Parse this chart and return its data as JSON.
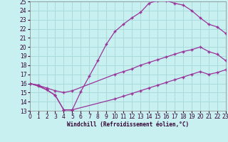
{
  "xlabel": "Windchill (Refroidissement éolien,°C)",
  "bg_color": "#c8f0f0",
  "grid_color": "#aadada",
  "line_color": "#993399",
  "xmin": 0,
  "xmax": 23,
  "ymin": 13,
  "ymax": 25,
  "line1_x": [
    0,
    1,
    2,
    3,
    4,
    5,
    6,
    7,
    8,
    9,
    10,
    11,
    12,
    13,
    14,
    15,
    16,
    17,
    18,
    19,
    20,
    21,
    22,
    23
  ],
  "line1_y": [
    16,
    15.8,
    15.3,
    14.7,
    13.1,
    13.1,
    15.1,
    16.8,
    18.5,
    20.3,
    21.7,
    22.5,
    23.2,
    23.8,
    24.8,
    25.1,
    25.1,
    24.8,
    24.6,
    24.0,
    23.2,
    22.5,
    22.2,
    21.5
  ],
  "line2_x": [
    0,
    1,
    2,
    3,
    4,
    5,
    10,
    11,
    12,
    13,
    14,
    15,
    16,
    17,
    18,
    19,
    20,
    21,
    22,
    23
  ],
  "line2_y": [
    16,
    15.8,
    15.5,
    15.2,
    15.0,
    15.2,
    17.0,
    17.3,
    17.6,
    18.0,
    18.3,
    18.6,
    18.9,
    19.2,
    19.5,
    19.7,
    20.0,
    19.5,
    19.2,
    18.5
  ],
  "line3_x": [
    0,
    1,
    2,
    3,
    4,
    5,
    10,
    11,
    12,
    13,
    14,
    15,
    16,
    17,
    18,
    19,
    20,
    21,
    22,
    23
  ],
  "line3_y": [
    16,
    15.7,
    15.3,
    14.7,
    13.1,
    13.1,
    14.3,
    14.6,
    14.9,
    15.2,
    15.5,
    15.8,
    16.1,
    16.4,
    16.7,
    17.0,
    17.3,
    17.0,
    17.2,
    17.5
  ],
  "tick_labelsize": 5.5,
  "xlabel_fontsize": 5.5
}
